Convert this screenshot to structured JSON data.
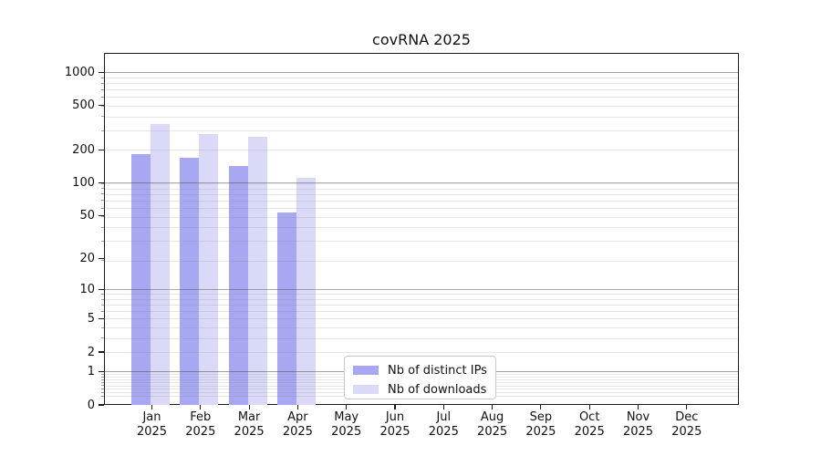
{
  "chart_data": {
    "type": "bar",
    "title": "covRNA 2025",
    "yscale": "log1p",
    "ylabel": "",
    "xlabel": "",
    "year_label": "2025",
    "months": [
      "Jan",
      "Feb",
      "Mar",
      "Apr",
      "May",
      "Jun",
      "Jul",
      "Aug",
      "Sep",
      "Oct",
      "Nov",
      "Dec"
    ],
    "series": [
      {
        "name": "Nb of distinct IPs",
        "color": "#a7a7f2",
        "values": [
          182,
          169,
          141,
          53,
          null,
          null,
          null,
          null,
          null,
          null,
          null,
          null
        ]
      },
      {
        "name": "Nb of downloads",
        "color": "#dadaf8",
        "values": [
          340,
          277,
          263,
          111,
          null,
          null,
          null,
          null,
          null,
          null,
          null,
          null
        ]
      }
    ],
    "y_ticks": [
      0,
      1,
      2,
      5,
      10,
      20,
      50,
      100,
      200,
      500,
      1000
    ],
    "ylim": [
      0,
      1500
    ],
    "grid": {
      "major_values": [
        1,
        10,
        100,
        1000
      ],
      "major_color": "#4a4a4a",
      "major_opacity": 0.45,
      "minor_color": "#808080",
      "minor_opacity": 0.2
    },
    "legend_position": "bottom-center"
  }
}
